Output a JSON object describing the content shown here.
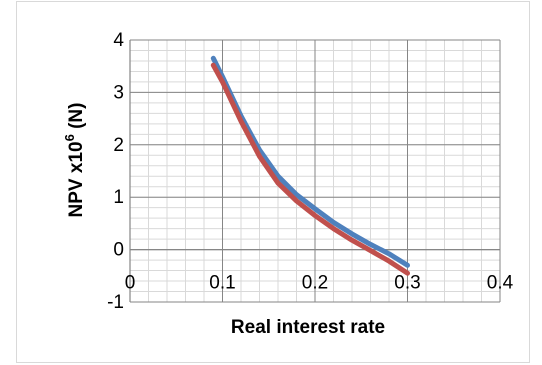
{
  "chart_data": {
    "type": "line",
    "title": "",
    "xlabel": "Real interest rate",
    "ylabel_main": "NPV x10",
    "ylabel_sup": "6",
    "ylabel_unit": " (N)",
    "xlim": [
      0,
      0.4
    ],
    "ylim": [
      -1,
      4
    ],
    "x_ticks": [
      0,
      0.1,
      0.2,
      0.3,
      0.4
    ],
    "x_tick_labels": [
      "0",
      "0.1",
      "0.2",
      "0.3",
      "0.4"
    ],
    "y_ticks": [
      -1,
      0,
      1,
      2,
      3,
      4
    ],
    "y_tick_labels": [
      "-1",
      "0",
      "1",
      "2",
      "3",
      "4"
    ],
    "grid": true,
    "legend": "none",
    "series": [
      {
        "color": "#4f81bd",
        "x": [
          0.09,
          0.1,
          0.12,
          0.14,
          0.16,
          0.18,
          0.2,
          0.22,
          0.24,
          0.26,
          0.28,
          0.3
        ],
        "y": [
          3.65,
          3.3,
          2.55,
          1.9,
          1.4,
          1.05,
          0.78,
          0.52,
          0.3,
          0.1,
          -0.08,
          -0.3
        ]
      },
      {
        "color": "#c0504d",
        "x": [
          0.09,
          0.1,
          0.12,
          0.14,
          0.16,
          0.18,
          0.2,
          0.22,
          0.24,
          0.26,
          0.28,
          0.3
        ],
        "y": [
          3.52,
          3.2,
          2.45,
          1.78,
          1.27,
          0.93,
          0.65,
          0.4,
          0.18,
          -0.02,
          -0.22,
          -0.45
        ]
      }
    ]
  }
}
